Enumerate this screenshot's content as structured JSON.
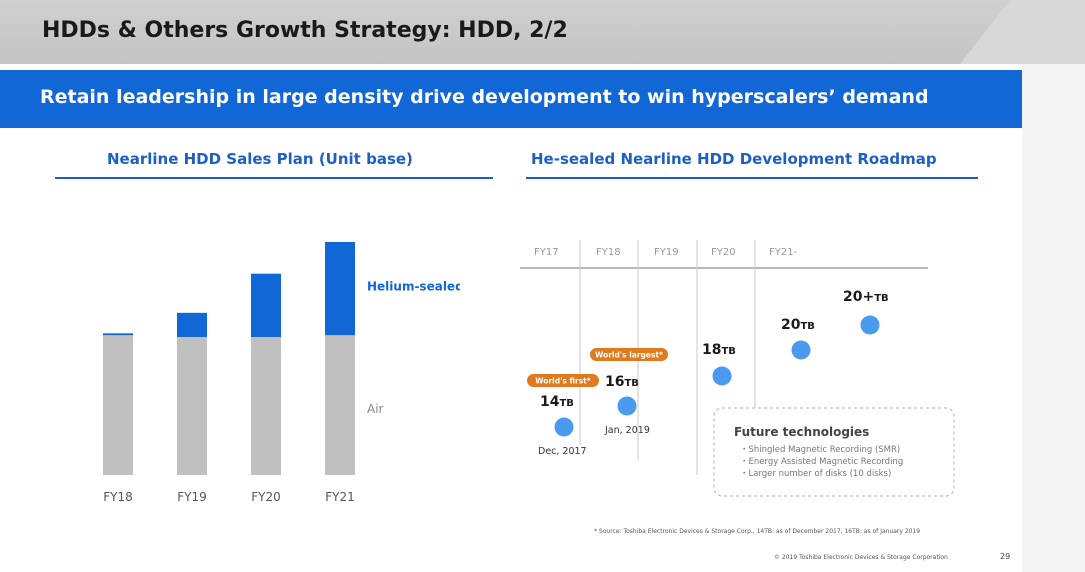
{
  "slide": {
    "title": "HDDs & Others Growth Strategy: HDD, 2/2",
    "banner": "Retain leadership in large density drive development to win hyperscalers’ demand",
    "footnote": "* Source: Toshiba Electronic Devices & Storage Corp., 14TB: as of December 2017, 16TB: as of January 2019",
    "copyright": "© 2019 Toshiba Electronic Devices & Storage Corporation",
    "page_number": "29"
  },
  "left": {
    "title": "Nearline HDD Sales Plan (Unit base)"
  },
  "chart_data": {
    "type": "bar",
    "stacked": true,
    "categories": [
      "FY18",
      "FY19",
      "FY20",
      "FY21"
    ],
    "series": [
      {
        "name": "Air",
        "values": [
          75,
          74,
          74,
          75
        ],
        "color": "#c0c0c0"
      },
      {
        "name": "Helium-sealed",
        "values": [
          1,
          13,
          34,
          50
        ],
        "color": "#1267d6"
      }
    ],
    "ylim": [
      0,
      125
    ],
    "grid": false,
    "legend": "right"
  },
  "right": {
    "title": "He-sealed Nearline HDD Development Roadmap",
    "periods": [
      "FY17",
      "FY18",
      "FY19",
      "FY20",
      "FY21-"
    ],
    "milestones": [
      {
        "capacity": "14",
        "unit": "TB",
        "date": "Dec, 2017",
        "badge": "World's first*"
      },
      {
        "capacity": "16",
        "unit": "TB",
        "date": "Jan, 2019",
        "badge": "World's largest*"
      },
      {
        "capacity": "18",
        "unit": "TB",
        "date": "",
        "badge": ""
      },
      {
        "capacity": "20",
        "unit": "TB",
        "date": "",
        "badge": ""
      },
      {
        "capacity": "20+",
        "unit": "TB",
        "date": "",
        "badge": ""
      }
    ],
    "future": {
      "title": "Future technologies",
      "items": [
        "・Shingled Magnetic Recording (SMR)",
        "・Energy Assisted Magnetic Recording",
        "・Larger number of disks (10 disks)"
      ]
    },
    "colors": {
      "dot": "#4a9af0",
      "badge": "#e07a1f",
      "line": "#a0a0a0"
    }
  }
}
